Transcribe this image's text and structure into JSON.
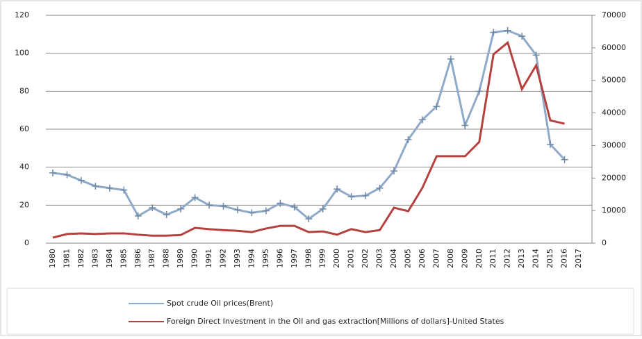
{
  "chart_data": {
    "type": "line",
    "categories": [
      "1980",
      "1981",
      "1982",
      "1983",
      "1984",
      "1985",
      "1986",
      "1987",
      "1988",
      "1989",
      "1990",
      "1991",
      "1992",
      "1993",
      "1994",
      "1995",
      "1996",
      "1997",
      "1998",
      "1999",
      "2000",
      "2001",
      "2002",
      "2003",
      "2004",
      "2005",
      "2006",
      "2007",
      "2008",
      "2009",
      "2010",
      "2011",
      "2012",
      "2013",
      "2014",
      "2015",
      "2016",
      "2017"
    ],
    "series": [
      {
        "name": "Spot crude Oil prices(Brent)",
        "color": "#8fa9c8",
        "marker": "+",
        "values": [
          37,
          36,
          33,
          30,
          29,
          28,
          14.3,
          18.6,
          15,
          18,
          24,
          20,
          19.5,
          17.5,
          16,
          17,
          21,
          19,
          12.8,
          18,
          28.5,
          24.5,
          25,
          29,
          38,
          54.5,
          65,
          72,
          97,
          62,
          80,
          111,
          112,
          109,
          99,
          52,
          44,
          null
        ]
      },
      {
        "name": "Foreign Direct Investment in the Oil and gas extraction[Millions  of dollars]-United States",
        "color": "#b5413f",
        "axis": "y2",
        "values": [
          1700,
          2800,
          3000,
          2800,
          3000,
          3000,
          2600,
          2300,
          2300,
          2500,
          4700,
          4300,
          4000,
          3800,
          3400,
          4500,
          5300,
          5300,
          3400,
          3600,
          2600,
          4300,
          3400,
          4000,
          10900,
          9800,
          17000,
          26700,
          26700,
          26700,
          31100,
          58000,
          61600,
          47300,
          54600,
          37700,
          36700,
          null
        ]
      }
    ],
    "ylim": [
      0,
      120
    ],
    "yticks": [
      0,
      20,
      40,
      60,
      80,
      100,
      120
    ],
    "y2lim": [
      0,
      70000
    ],
    "y2ticks": [
      0,
      10000,
      20000,
      30000,
      40000,
      50000,
      60000,
      70000
    ],
    "grid": true,
    "legend": "bottom"
  }
}
